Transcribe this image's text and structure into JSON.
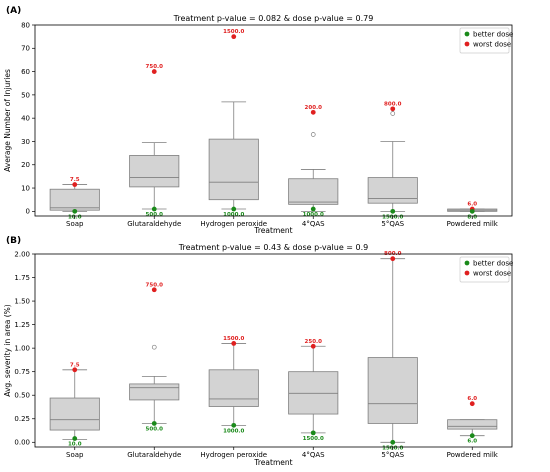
{
  "colors": {
    "best": "#1a8a1a",
    "worst": "#e02020",
    "box": "#d3d3d3",
    "edge": "#7f7f7f"
  },
  "chart_data": [
    {
      "type": "box",
      "panel_label": "(A)",
      "title": "Treatment p-value = 0.082 & dose p-value = 0.79",
      "xlabel": "Treatment",
      "ylabel": "Average Number of Injuries",
      "ylim": [
        -2,
        80
      ],
      "yticks": [
        "0",
        "10",
        "20",
        "30",
        "40",
        "50",
        "60",
        "70",
        "80"
      ],
      "ytick_values": [
        0,
        10,
        20,
        30,
        40,
        50,
        60,
        70,
        80
      ],
      "categories": [
        "Soap",
        "Glutaraldehyde",
        "Hydrogen peroxide",
        "4°QAS",
        "5°QAS",
        "Powdered milk"
      ],
      "boxes": [
        {
          "whislo": 0,
          "q1": 0.5,
          "med": 1.5,
          "q3": 9.5,
          "whishi": 11.5,
          "fliers": []
        },
        {
          "whislo": 1,
          "q1": 10.5,
          "med": 14.5,
          "q3": 24,
          "whishi": 29.5,
          "fliers": []
        },
        {
          "whislo": 1,
          "q1": 5,
          "med": 12.5,
          "q3": 31,
          "whishi": 47,
          "fliers": []
        },
        {
          "whislo": 0,
          "q1": 3,
          "med": 4,
          "q3": 14,
          "whishi": 18,
          "fliers": [
            33
          ]
        },
        {
          "whislo": 0,
          "q1": 3.5,
          "med": 5.5,
          "q3": 14.5,
          "whishi": 30,
          "fliers": [
            42
          ]
        },
        {
          "whislo": 0,
          "q1": 0,
          "med": 0.5,
          "q3": 1,
          "whishi": 1,
          "fliers": []
        }
      ],
      "best_dose": [
        {
          "y": 0,
          "label": "10.0"
        },
        {
          "y": 1,
          "label": "500.0"
        },
        {
          "y": 1,
          "label": "1000.0"
        },
        {
          "y": 1,
          "label": "1000.0"
        },
        {
          "y": 0,
          "label": "1500.0"
        },
        {
          "y": 0,
          "label": "8.0"
        }
      ],
      "worst_dose": [
        {
          "y": 11.5,
          "label": "7.5"
        },
        {
          "y": 60,
          "label": "750.0"
        },
        {
          "y": 75,
          "label": "1500.0"
        },
        {
          "y": 42.5,
          "label": "200.0"
        },
        {
          "y": 44,
          "label": "800.0"
        },
        {
          "y": 1,
          "label": "6.0"
        }
      ],
      "legend": {
        "position": "top-right",
        "entries": [
          "better dose",
          "worst dose"
        ]
      }
    },
    {
      "type": "box",
      "panel_label": "(B)",
      "title": "Treatment p-value = 0.43 & dose p-value = 0.9",
      "xlabel": "Treatment",
      "ylabel": "Avg. severity in area (%)",
      "ylim": [
        -0.05,
        2.0
      ],
      "yticks": [
        "0.00",
        "0.25",
        "0.50",
        "0.75",
        "1.00",
        "1.25",
        "1.50",
        "1.75",
        "2.00"
      ],
      "ytick_values": [
        0,
        0.25,
        0.5,
        0.75,
        1.0,
        1.25,
        1.5,
        1.75,
        2.0
      ],
      "categories": [
        "Soap",
        "Glutaraldehyde",
        "Hydrogen peroxide",
        "4°QAS",
        "5°QAS",
        "Powdered milk"
      ],
      "boxes": [
        {
          "whislo": 0.03,
          "q1": 0.13,
          "med": 0.24,
          "q3": 0.47,
          "whishi": 0.77,
          "fliers": []
        },
        {
          "whislo": 0.2,
          "q1": 0.45,
          "med": 0.58,
          "q3": 0.62,
          "whishi": 0.7,
          "fliers": [
            1.01
          ]
        },
        {
          "whislo": 0.18,
          "q1": 0.38,
          "med": 0.46,
          "q3": 0.77,
          "whishi": 1.05,
          "fliers": []
        },
        {
          "whislo": 0.1,
          "q1": 0.3,
          "med": 0.52,
          "q3": 0.75,
          "whishi": 1.02,
          "fliers": []
        },
        {
          "whislo": 0.0,
          "q1": 0.2,
          "med": 0.41,
          "q3": 0.9,
          "whishi": 1.95,
          "fliers": []
        },
        {
          "whislo": 0.07,
          "q1": 0.14,
          "med": 0.17,
          "q3": 0.24,
          "whishi": 0.24,
          "fliers": []
        }
      ],
      "best_dose": [
        {
          "y": 0.04,
          "label": "10.0"
        },
        {
          "y": 0.2,
          "label": "500.0"
        },
        {
          "y": 0.18,
          "label": "1000.0"
        },
        {
          "y": 0.1,
          "label": "1500.0"
        },
        {
          "y": 0.0,
          "label": "1500.0"
        },
        {
          "y": 0.07,
          "label": "6.0"
        }
      ],
      "worst_dose": [
        {
          "y": 0.77,
          "label": "7.5"
        },
        {
          "y": 1.62,
          "label": "750.0"
        },
        {
          "y": 1.05,
          "label": "1500.0"
        },
        {
          "y": 1.02,
          "label": "250.0"
        },
        {
          "y": 1.95,
          "label": "800.0"
        },
        {
          "y": 0.41,
          "label": "6.0"
        }
      ],
      "legend": {
        "position": "top-right",
        "entries": [
          "better dose",
          "worst dose"
        ]
      }
    }
  ]
}
